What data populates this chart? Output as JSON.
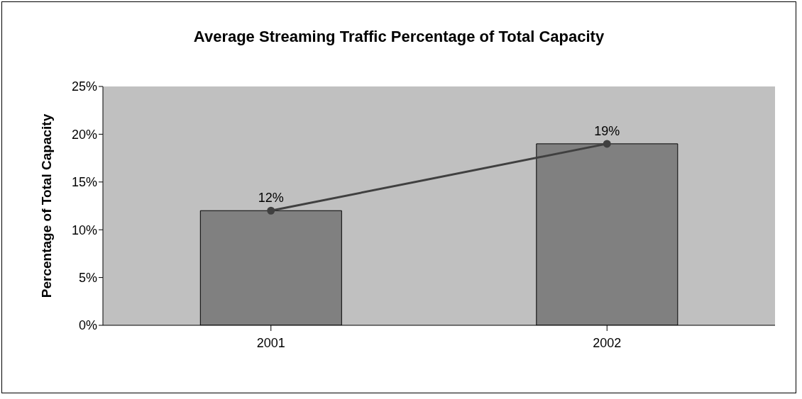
{
  "chart_data": {
    "type": "bar",
    "title": "Average Streaming Traffic Percentage of Total Capacity",
    "ylabel": "Percentage of Total Capacity",
    "categories": [
      "2001",
      "2002"
    ],
    "series": [
      {
        "color": "#808080",
        "values": [
          12,
          19
        ]
      },
      {
        "type": "line",
        "color": "#404040",
        "values": [
          12,
          19
        ],
        "value_labels": [
          "12%",
          "19%"
        ],
        "marker": "circle"
      }
    ],
    "ylim": [
      0,
      25
    ],
    "yticks": [
      {
        "value": 0,
        "label": "0%"
      },
      {
        "value": 5,
        "label": "5%"
      },
      {
        "value": 10,
        "label": "10%"
      },
      {
        "value": 15,
        "label": "15%"
      },
      {
        "value": 20,
        "label": "20%"
      },
      {
        "value": 25,
        "label": "25%"
      }
    ],
    "grid": false,
    "legend": false
  }
}
